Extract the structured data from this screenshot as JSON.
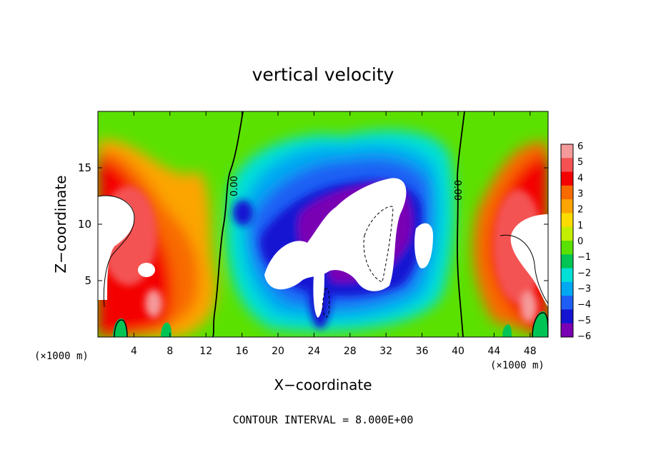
{
  "chart_data": {
    "type": "heatmap",
    "title": "vertical velocity",
    "xlabel": "X−coordinate",
    "ylabel": "Z−coordinate",
    "x_unit_label_left": "(×1000 m)",
    "x_unit_label_right": "(×1000 m)",
    "xlim": [
      0,
      50
    ],
    "ylim": [
      0,
      20
    ],
    "x_ticks": [
      4,
      8,
      12,
      16,
      20,
      24,
      28,
      32,
      36,
      40,
      44,
      48
    ],
    "y_ticks": [
      5,
      10,
      15
    ],
    "colorbar": {
      "min": -6,
      "max": 6,
      "ticks": [
        "6",
        "5",
        "4",
        "3",
        "2",
        "1",
        "0",
        "−1",
        "−2",
        "−3",
        "−4",
        "−5",
        "−6"
      ],
      "colors": [
        "#f59a9a",
        "#f45252",
        "#f40000",
        "#f86a00",
        "#fca400",
        "#fcdc00",
        "#c4ee00",
        "#5be100",
        "#00c454",
        "#00e0d6",
        "#00a8f2",
        "#1e5ef4",
        "#1414d2",
        "#7a00b4"
      ]
    },
    "contour_labels": [
      "0.00",
      "0.00"
    ],
    "footer": "CONTOUR INTERVAL = 8.000E+00",
    "grid": false,
    "legend": "right"
  }
}
